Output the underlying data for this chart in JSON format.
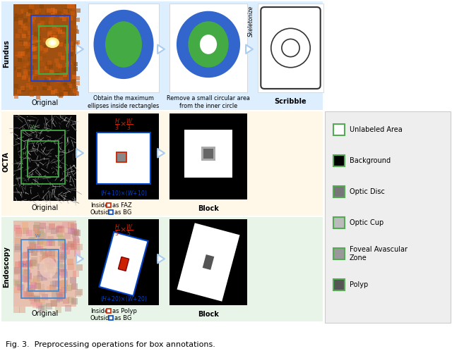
{
  "title": "Fig. 3.  Preprocessing operations for box annotations.",
  "bg_top": "#ddeeff",
  "bg_mid": "#fff8e8",
  "bg_bot": "#e8f4e8",
  "legend_bg": "#eeeeee",
  "arrow_color": "#aaccee",
  "red_color": "#cc2200",
  "blue_color": "#0044cc",
  "blue_ellipse": "#3366cc",
  "green_ellipse": "#44aa44",
  "legend_items": [
    {
      "label": "Unlabeled Area",
      "facecolor": "#ffffff",
      "edgecolor": "#55aa55"
    },
    {
      "label": "Background",
      "facecolor": "#000000",
      "edgecolor": "#55aa55"
    },
    {
      "label": "Optic Disc",
      "facecolor": "#777777",
      "edgecolor": "#55aa55"
    },
    {
      "label": "Optic Cup",
      "facecolor": "#bbbbbb",
      "edgecolor": "#55aa55"
    },
    {
      "label": "Foveal Avascular\nZone",
      "facecolor": "#999999",
      "edgecolor": "#55aa55"
    },
    {
      "label": "Polyp",
      "facecolor": "#555555",
      "edgecolor": "#55aa55"
    }
  ],
  "fig_w": 6.4,
  "fig_h": 4.98,
  "dpi": 100
}
